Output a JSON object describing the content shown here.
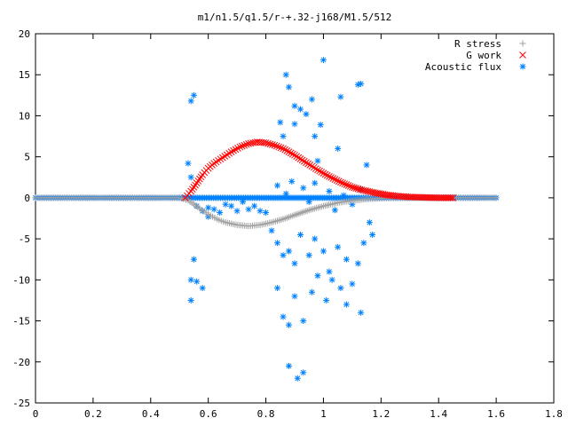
{
  "chart_data": {
    "type": "scatter",
    "title": "m1/n1.5/q1.5/r-+.32-j168/M1.5/512",
    "xlabel": "",
    "ylabel": "",
    "xlim": [
      0,
      1.8
    ],
    "ylim": [
      -25,
      20
    ],
    "x_ticks": [
      "0",
      "0.2",
      "0.4",
      "0.6",
      "0.8",
      "1",
      "1.2",
      "1.4",
      "1.6",
      "1.8"
    ],
    "y_ticks": [
      "20",
      "15",
      "10",
      "5",
      "0",
      "-5",
      "-10",
      "-15",
      "-20",
      "-25"
    ],
    "grid": false,
    "legend_position": "top-right",
    "series": [
      {
        "name": "R stress",
        "marker": "+",
        "color": "#a0a0a0",
        "points": [
          [
            0.0,
            0.0
          ],
          [
            0.1,
            0.0
          ],
          [
            0.2,
            0.0
          ],
          [
            0.3,
            0.0
          ],
          [
            0.4,
            0.0
          ],
          [
            0.5,
            0.0
          ],
          [
            0.53,
            -0.3
          ],
          [
            0.55,
            -0.8
          ],
          [
            0.57,
            -1.3
          ],
          [
            0.6,
            -2.0
          ],
          [
            0.63,
            -2.6
          ],
          [
            0.66,
            -3.0
          ],
          [
            0.7,
            -3.3
          ],
          [
            0.74,
            -3.45
          ],
          [
            0.78,
            -3.3
          ],
          [
            0.82,
            -3.0
          ],
          [
            0.86,
            -2.6
          ],
          [
            0.9,
            -2.1
          ],
          [
            0.95,
            -1.5
          ],
          [
            1.0,
            -1.0
          ],
          [
            1.05,
            -0.6
          ],
          [
            1.1,
            -0.35
          ],
          [
            1.15,
            -0.15
          ],
          [
            1.2,
            -0.05
          ],
          [
            1.3,
            0.0
          ],
          [
            1.4,
            0.0
          ],
          [
            1.5,
            0.0
          ],
          [
            1.6,
            0.0
          ]
        ]
      },
      {
        "name": "G work",
        "marker": "x",
        "color": "#ff0000",
        "points": [
          [
            0.52,
            0.0
          ],
          [
            0.54,
            0.8
          ],
          [
            0.56,
            1.8
          ],
          [
            0.58,
            2.8
          ],
          [
            0.6,
            3.6
          ],
          [
            0.62,
            4.2
          ],
          [
            0.65,
            4.9
          ],
          [
            0.68,
            5.6
          ],
          [
            0.71,
            6.2
          ],
          [
            0.74,
            6.6
          ],
          [
            0.77,
            6.8
          ],
          [
            0.8,
            6.7
          ],
          [
            0.83,
            6.4
          ],
          [
            0.86,
            6.0
          ],
          [
            0.9,
            5.2
          ],
          [
            0.94,
            4.3
          ],
          [
            0.98,
            3.4
          ],
          [
            1.02,
            2.6
          ],
          [
            1.06,
            1.9
          ],
          [
            1.1,
            1.3
          ],
          [
            1.14,
            0.9
          ],
          [
            1.18,
            0.6
          ],
          [
            1.22,
            0.35
          ],
          [
            1.26,
            0.2
          ],
          [
            1.3,
            0.1
          ],
          [
            1.35,
            0.05
          ],
          [
            1.4,
            0.0
          ],
          [
            1.45,
            0.0
          ]
        ]
      },
      {
        "name": "Acoustic flux",
        "marker": "*",
        "color": "#0080ff",
        "points": [
          [
            0.0,
            0.0
          ],
          [
            0.1,
            0.0
          ],
          [
            0.2,
            0.0
          ],
          [
            0.3,
            0.0
          ],
          [
            0.4,
            0.0
          ],
          [
            0.5,
            0.0
          ],
          [
            1.3,
            0.0
          ],
          [
            1.4,
            0.0
          ],
          [
            1.5,
            0.0
          ],
          [
            1.6,
            0.0
          ],
          [
            0.55,
            12.5
          ],
          [
            0.54,
            11.8
          ],
          [
            0.53,
            4.2
          ],
          [
            0.54,
            2.5
          ],
          [
            0.56,
            -1.0
          ],
          [
            0.58,
            -1.6
          ],
          [
            0.6,
            -2.3
          ],
          [
            0.55,
            -7.5
          ],
          [
            0.54,
            -10.0
          ],
          [
            0.56,
            -10.2
          ],
          [
            0.58,
            -11.0
          ],
          [
            0.54,
            -12.5
          ],
          [
            0.6,
            -1.2
          ],
          [
            0.62,
            -1.4
          ],
          [
            0.64,
            -1.8
          ],
          [
            0.66,
            -0.8
          ],
          [
            0.68,
            -1.0
          ],
          [
            0.7,
            -1.6
          ],
          [
            0.72,
            -0.5
          ],
          [
            0.74,
            -1.4
          ],
          [
            0.76,
            -1.0
          ],
          [
            0.78,
            -1.6
          ],
          [
            0.8,
            -1.8
          ],
          [
            0.85,
            9.2
          ],
          [
            0.86,
            7.5
          ],
          [
            0.87,
            15.0
          ],
          [
            0.88,
            13.5
          ],
          [
            0.9,
            11.2
          ],
          [
            0.9,
            9.0
          ],
          [
            0.92,
            10.8
          ],
          [
            0.94,
            10.2
          ],
          [
            0.96,
            12.0
          ],
          [
            0.97,
            7.5
          ],
          [
            0.99,
            8.9
          ],
          [
            1.0,
            16.8
          ],
          [
            1.06,
            12.3
          ],
          [
            1.12,
            13.8
          ],
          [
            1.13,
            13.9
          ],
          [
            1.05,
            6.0
          ],
          [
            0.98,
            4.5
          ],
          [
            1.15,
            4.0
          ],
          [
            0.84,
            1.5
          ],
          [
            0.87,
            0.5
          ],
          [
            0.89,
            2.0
          ],
          [
            0.93,
            1.2
          ],
          [
            0.95,
            -0.5
          ],
          [
            0.97,
            1.8
          ],
          [
            1.02,
            0.8
          ],
          [
            1.04,
            -1.5
          ],
          [
            1.07,
            0.3
          ],
          [
            1.1,
            -0.8
          ],
          [
            1.13,
            1.0
          ],
          [
            0.82,
            -4.0
          ],
          [
            0.84,
            -5.5
          ],
          [
            0.86,
            -7.0
          ],
          [
            0.88,
            -6.5
          ],
          [
            0.9,
            -8.0
          ],
          [
            0.92,
            -4.5
          ],
          [
            0.95,
            -7.0
          ],
          [
            0.97,
            -5.0
          ],
          [
            1.0,
            -6.5
          ],
          [
            1.02,
            -9.0
          ],
          [
            1.05,
            -6.0
          ],
          [
            1.08,
            -7.5
          ],
          [
            1.1,
            -10.5
          ],
          [
            1.12,
            -8.0
          ],
          [
            1.14,
            -5.5
          ],
          [
            1.16,
            -3.0
          ],
          [
            1.17,
            -4.5
          ],
          [
            0.84,
            -11.0
          ],
          [
            0.86,
            -14.5
          ],
          [
            0.88,
            -15.5
          ],
          [
            0.9,
            -12.0
          ],
          [
            0.93,
            -15.0
          ],
          [
            0.96,
            -11.5
          ],
          [
            0.98,
            -9.5
          ],
          [
            1.01,
            -12.5
          ],
          [
            1.03,
            -10.0
          ],
          [
            1.06,
            -11.0
          ],
          [
            1.08,
            -13.0
          ],
          [
            1.13,
            -14.0
          ],
          [
            0.88,
            -20.5
          ],
          [
            0.91,
            -22.0
          ],
          [
            0.93,
            -21.3
          ]
        ]
      }
    ]
  }
}
